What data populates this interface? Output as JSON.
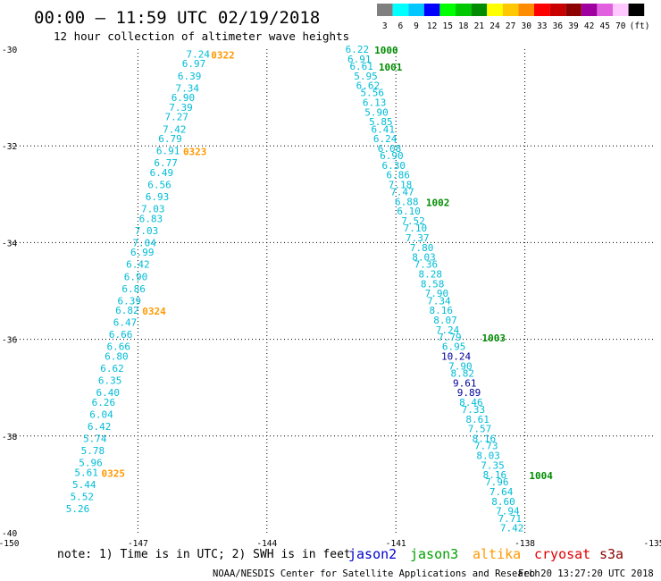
{
  "header": {
    "title": "00:00 – 11:59 UTC 02/19/2018",
    "subtitle": "12 hour collection of altimeter wave heights"
  },
  "legend": {
    "bins": [
      {
        "label": "3",
        "color": "#7f7f7f"
      },
      {
        "label": "6",
        "color": "#00ffff"
      },
      {
        "label": "9",
        "color": "#00c8ff"
      },
      {
        "label": "12",
        "color": "#0000ff"
      },
      {
        "label": "15",
        "color": "#00ff00"
      },
      {
        "label": "18",
        "color": "#00c800"
      },
      {
        "label": "21",
        "color": "#008c00"
      },
      {
        "label": "24",
        "color": "#ffff00"
      },
      {
        "label": "27",
        "color": "#ffc800"
      },
      {
        "label": "30",
        "color": "#ff8c00"
      },
      {
        "label": "33",
        "color": "#ff0000"
      },
      {
        "label": "36",
        "color": "#c80000"
      },
      {
        "label": "39",
        "color": "#8c0000"
      },
      {
        "label": "42",
        "color": "#a000a0"
      },
      {
        "label": "45",
        "color": "#e060e0"
      },
      {
        "label": "70",
        "color": "#ffc8ff"
      },
      {
        "label": "",
        "color": "#000000"
      }
    ],
    "unit_label": "(ft)"
  },
  "chart_data": {
    "type": "scatter",
    "title": "00:00 – 11:59 UTC 02/19/2018",
    "subtitle": "12 hour collection of altimeter wave heights",
    "xlim": [
      -150,
      -135
    ],
    "ylim": [
      -40,
      -30
    ],
    "x_ticks": [
      "-150",
      "-147",
      "-144",
      "-141",
      "-138",
      "-135"
    ],
    "y_ticks": [
      "-30",
      "-32",
      "-34",
      "-36",
      "-38",
      "-40"
    ],
    "grid": true,
    "colors": {
      "light_blue": "#00bcd6",
      "dark_blue": "#00009c",
      "green_label": "#008c00",
      "orange_label": "#ff9900"
    },
    "series": [
      {
        "name": "altika",
        "points": [
          {
            "x": -145.6,
            "y": -30.1,
            "v": "7.24"
          },
          {
            "x": -145.7,
            "y": -30.3,
            "v": "6.97"
          },
          {
            "x": -145.8,
            "y": -30.55,
            "v": "6.39"
          },
          {
            "x": -145.85,
            "y": -30.8,
            "v": "7.34"
          },
          {
            "x": -145.95,
            "y": -31.0,
            "v": "6.90"
          },
          {
            "x": -146.0,
            "y": -31.2,
            "v": "7.39"
          },
          {
            "x": -146.1,
            "y": -31.4,
            "v": "7.27"
          },
          {
            "x": -146.15,
            "y": -31.65,
            "v": "7.42"
          },
          {
            "x": -146.25,
            "y": -31.85,
            "v": "6.79"
          },
          {
            "x": -146.3,
            "y": -32.1,
            "v": "6.91"
          },
          {
            "x": -146.35,
            "y": -32.35,
            "v": "6.77"
          },
          {
            "x": -146.45,
            "y": -32.55,
            "v": "6.49"
          },
          {
            "x": -146.5,
            "y": -32.8,
            "v": "6.56"
          },
          {
            "x": -146.55,
            "y": -33.05,
            "v": "6.93"
          },
          {
            "x": -146.65,
            "y": -33.3,
            "v": "7.03"
          },
          {
            "x": -146.7,
            "y": -33.5,
            "v": "6.83"
          },
          {
            "x": -146.8,
            "y": -33.75,
            "v": "7.03"
          },
          {
            "x": -146.85,
            "y": -34.0,
            "v": "7.04"
          },
          {
            "x": -146.9,
            "y": -34.2,
            "v": "6.99"
          },
          {
            "x": -147.0,
            "y": -34.45,
            "v": "6.42"
          },
          {
            "x": -147.05,
            "y": -34.7,
            "v": "6.90"
          },
          {
            "x": -147.1,
            "y": -34.95,
            "v": "6.86"
          },
          {
            "x": -147.2,
            "y": -35.2,
            "v": "6.39"
          },
          {
            "x": -147.25,
            "y": -35.4,
            "v": "6.82"
          },
          {
            "x": -147.3,
            "y": -35.65,
            "v": "6.47"
          },
          {
            "x": -147.4,
            "y": -35.9,
            "v": "6.66"
          },
          {
            "x": -147.45,
            "y": -36.15,
            "v": "6.66"
          },
          {
            "x": -147.5,
            "y": -36.35,
            "v": "6.80"
          },
          {
            "x": -147.6,
            "y": -36.6,
            "v": "6.62"
          },
          {
            "x": -147.65,
            "y": -36.85,
            "v": "6.35"
          },
          {
            "x": -147.7,
            "y": -37.1,
            "v": "6.40"
          },
          {
            "x": -147.8,
            "y": -37.3,
            "v": "6.26"
          },
          {
            "x": -147.85,
            "y": -37.55,
            "v": "6.04"
          },
          {
            "x": -147.9,
            "y": -37.8,
            "v": "6.42"
          },
          {
            "x": -148.0,
            "y": -38.05,
            "v": "5.74"
          },
          {
            "x": -148.05,
            "y": -38.3,
            "v": "5.78"
          },
          {
            "x": -148.1,
            "y": -38.55,
            "v": "5.96"
          },
          {
            "x": -148.2,
            "y": -38.75,
            "v": "5.61"
          },
          {
            "x": -148.25,
            "y": -39.0,
            "v": "5.44"
          },
          {
            "x": -148.3,
            "y": -39.25,
            "v": "5.52"
          },
          {
            "x": -148.4,
            "y": -39.5,
            "v": "5.26"
          }
        ],
        "time_labels": [
          {
            "x": -145.3,
            "y": -30.1,
            "text": "0322"
          },
          {
            "x": -145.95,
            "y": -32.1,
            "text": "0323"
          },
          {
            "x": -146.9,
            "y": -35.4,
            "text": "0324"
          },
          {
            "x": -147.85,
            "y": -38.75,
            "text": "0325"
          }
        ]
      },
      {
        "name": "jason3",
        "points": [
          {
            "x": -141.9,
            "y": -30.0,
            "v": "6.22"
          },
          {
            "x": -141.85,
            "y": -30.2,
            "v": "6.91"
          },
          {
            "x": -141.8,
            "y": -30.35,
            "v": "6.61"
          },
          {
            "x": -141.7,
            "y": -30.55,
            "v": "5.95"
          },
          {
            "x": -141.65,
            "y": -30.75,
            "v": "6.62"
          },
          {
            "x": -141.55,
            "y": -30.9,
            "v": "5.56"
          },
          {
            "x": -141.5,
            "y": -31.1,
            "v": "6.13"
          },
          {
            "x": -141.45,
            "y": -31.3,
            "v": "5.90"
          },
          {
            "x": -141.35,
            "y": -31.5,
            "v": "5.85"
          },
          {
            "x": -141.3,
            "y": -31.65,
            "v": "6.41"
          },
          {
            "x": -141.25,
            "y": -31.85,
            "v": "6.24"
          },
          {
            "x": -141.15,
            "y": -32.05,
            "v": "6.08"
          },
          {
            "x": -141.1,
            "y": -32.2,
            "v": "6.90"
          },
          {
            "x": -141.05,
            "y": -32.4,
            "v": "6.30"
          },
          {
            "x": -140.95,
            "y": -32.6,
            "v": "6.86"
          },
          {
            "x": -140.9,
            "y": -32.8,
            "v": "7.18"
          },
          {
            "x": -140.85,
            "y": -32.95,
            "v": "7.47"
          },
          {
            "x": -140.75,
            "y": -33.15,
            "v": "6.88"
          },
          {
            "x": -140.7,
            "y": -33.35,
            "v": "6.10"
          },
          {
            "x": -140.6,
            "y": -33.55,
            "v": "7.52"
          },
          {
            "x": -140.55,
            "y": -33.7,
            "v": "7.10"
          },
          {
            "x": -140.5,
            "y": -33.9,
            "v": "7.37"
          },
          {
            "x": -140.4,
            "y": -34.1,
            "v": "7.80"
          },
          {
            "x": -140.35,
            "y": -34.3,
            "v": "8.03"
          },
          {
            "x": -140.3,
            "y": -34.45,
            "v": "7.36"
          },
          {
            "x": -140.2,
            "y": -34.65,
            "v": "8.28"
          },
          {
            "x": -140.15,
            "y": -34.85,
            "v": "8.58"
          },
          {
            "x": -140.05,
            "y": -35.05,
            "v": "7.90"
          },
          {
            "x": -140.0,
            "y": -35.2,
            "v": "7.34"
          },
          {
            "x": -139.95,
            "y": -35.4,
            "v": "8.16"
          },
          {
            "x": -139.85,
            "y": -35.6,
            "v": "8.07"
          },
          {
            "x": -139.8,
            "y": -35.8,
            "v": "7.24"
          },
          {
            "x": -139.75,
            "y": -35.95,
            "v": "7.79"
          },
          {
            "x": -139.65,
            "y": -36.15,
            "v": "6.95"
          },
          {
            "x": -139.6,
            "y": -36.35,
            "v": "10.24"
          },
          {
            "x": -139.5,
            "y": -36.55,
            "v": "7.90"
          },
          {
            "x": -139.45,
            "y": -36.7,
            "v": "8.82"
          },
          {
            "x": -139.4,
            "y": -36.9,
            "v": "9.61"
          },
          {
            "x": -139.3,
            "y": -37.1,
            "v": "9.89"
          },
          {
            "x": -139.25,
            "y": -37.3,
            "v": "8.46"
          },
          {
            "x": -139.2,
            "y": -37.45,
            "v": "7.33"
          },
          {
            "x": -139.1,
            "y": -37.65,
            "v": "8.61"
          },
          {
            "x": -139.05,
            "y": -37.85,
            "v": "7.57"
          },
          {
            "x": -138.95,
            "y": -38.05,
            "v": "8.16"
          },
          {
            "x": -138.9,
            "y": -38.2,
            "v": "7.73"
          },
          {
            "x": -138.85,
            "y": -38.4,
            "v": "8.03"
          },
          {
            "x": -138.75,
            "y": -38.6,
            "v": "7.35"
          },
          {
            "x": -138.7,
            "y": -38.8,
            "v": "8.16"
          },
          {
            "x": -138.65,
            "y": -38.95,
            "v": "7.96"
          },
          {
            "x": -138.55,
            "y": -39.15,
            "v": "7.64"
          },
          {
            "x": -138.5,
            "y": -39.35,
            "v": "8.60"
          },
          {
            "x": -138.4,
            "y": -39.55,
            "v": "7.94"
          },
          {
            "x": -138.35,
            "y": -39.7,
            "v": "7.71"
          },
          {
            "x": -138.3,
            "y": -39.9,
            "v": "7.42"
          }
        ],
        "time_labels": [
          {
            "x": -141.5,
            "y": -30.0,
            "text": "1000"
          },
          {
            "x": -141.4,
            "y": -30.35,
            "v2": "",
            "text": "1001"
          },
          {
            "x": -140.3,
            "y": -33.15,
            "text": "1002"
          },
          {
            "x": -139.0,
            "y": -35.95,
            "text": "1003"
          },
          {
            "x": -137.9,
            "y": -38.8,
            "text": "1004"
          }
        ]
      }
    ]
  },
  "footer": {
    "note": "note: 1) Time is in UTC; 2) SWH is in feet",
    "missions": [
      {
        "name": "jason2",
        "color": "#0000cc"
      },
      {
        "name": "jason3",
        "color": "#00a000"
      },
      {
        "name": "altika",
        "color": "#ff9900"
      },
      {
        "name": "cryosat",
        "color": "#e00000"
      },
      {
        "name": "s3a",
        "color": "#8b0000"
      }
    ],
    "credit": "NOAA/NESDIS Center for Satellite Applications and Research",
    "timestamp": "Feb 20 13:27:20 UTC 2018"
  }
}
